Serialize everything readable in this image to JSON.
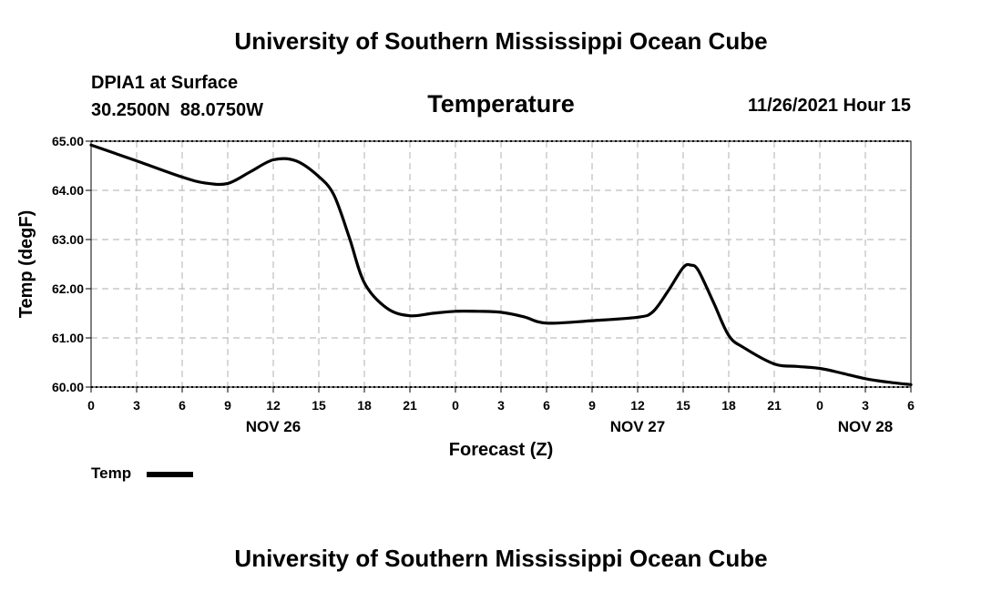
{
  "header": {
    "org_title": "University of Southern Mississippi Ocean Cube",
    "station_name": "DPIA1 at Surface",
    "coords_lat": "30.2500N",
    "coords_lon": "88.0750W",
    "chart_title": "Temperature",
    "valid_time": "11/26/2021 Hour 15"
  },
  "footer": {
    "org_title": "University of Southern Mississippi Ocean Cube"
  },
  "chart_data": {
    "type": "line",
    "title": "Temperature",
    "xlabel": "Forecast (Z)",
    "ylabel": "Temp (degF)",
    "ylim": [
      60.0,
      65.0
    ],
    "xlim": [
      0,
      54
    ],
    "yticks": [
      "60.00",
      "61.00",
      "62.00",
      "63.00",
      "64.00",
      "65.00"
    ],
    "xticks": [
      "0",
      "3",
      "6",
      "9",
      "12",
      "15",
      "18",
      "21",
      "0",
      "3",
      "6",
      "9",
      "12",
      "15",
      "18",
      "21",
      "0",
      "3",
      "6"
    ],
    "day_labels": [
      {
        "label": "NOV 26",
        "hour": 12
      },
      {
        "label": "NOV 27",
        "hour": 36
      },
      {
        "label": "NOV 28",
        "hour": 51
      }
    ],
    "grid": true,
    "legend": {
      "position": "bottom-left",
      "entries": [
        "Temp"
      ]
    },
    "series": [
      {
        "name": "Temp",
        "color": "#000000",
        "x": [
          0,
          3,
          6,
          7.5,
          9,
          10.5,
          12,
          13.5,
          15,
          16,
          17,
          18,
          19.5,
          21,
          22.5,
          24,
          25.5,
          27,
          28.5,
          30,
          33,
          36,
          37,
          38,
          39,
          39.5,
          40,
          41,
          42,
          43,
          45,
          46.5,
          48,
          49.5,
          51,
          52.5,
          54
        ],
        "values": [
          64.92,
          64.6,
          64.27,
          64.15,
          64.14,
          64.38,
          64.62,
          64.6,
          64.28,
          63.9,
          63.05,
          62.12,
          61.6,
          61.45,
          61.5,
          61.54,
          61.54,
          61.52,
          61.43,
          61.3,
          61.35,
          61.42,
          61.53,
          61.95,
          62.43,
          62.48,
          62.37,
          61.72,
          61.05,
          60.8,
          60.47,
          60.42,
          60.38,
          60.28,
          60.17,
          60.1,
          60.05
        ]
      }
    ]
  }
}
